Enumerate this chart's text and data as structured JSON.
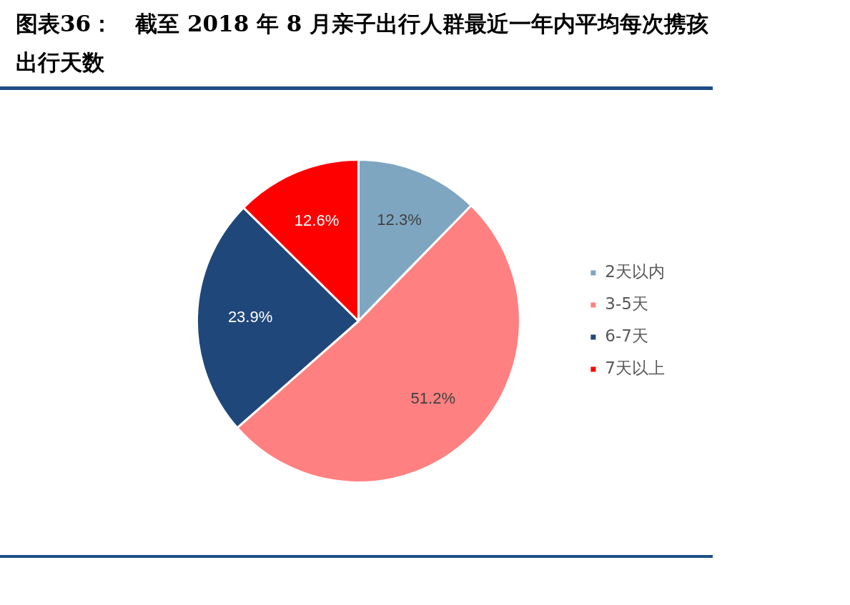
{
  "chart_data": {
    "type": "pie",
    "title": "图表36：　截至 2018 年 8 月亲子出行人群最近一年内平均每次携孩出行天数",
    "categories": [
      "2天以内",
      "3-5天",
      "6-7天",
      "7天以上"
    ],
    "values": [
      12.3,
      51.2,
      23.9,
      12.6
    ],
    "colors": [
      "#7fa6c0",
      "#ff8080",
      "#1f477a",
      "#ff0000"
    ],
    "value_labels": [
      "12.3%",
      "51.2%",
      "23.9%",
      "12.6%"
    ],
    "legend": "right"
  }
}
